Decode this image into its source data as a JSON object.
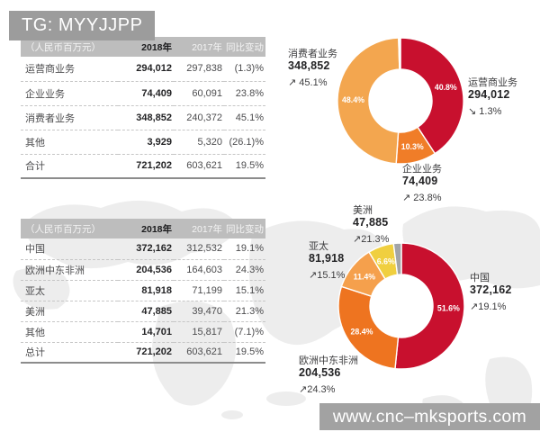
{
  "watermarks": {
    "tag": "TG: MYYJJPP",
    "site": "www.cnc–mksports.com"
  },
  "tables": [
    {
      "headers": {
        "unit": "（人民币百万元）",
        "y2018": "2018年",
        "y2017": "2017年",
        "change": "同比变动"
      },
      "rows": [
        {
          "label": "运营商业务",
          "v2018": "294,012",
          "v2017": "297,838",
          "change": "(1.3)%"
        },
        {
          "label": "企业业务",
          "v2018": "74,409",
          "v2017": "60,091",
          "change": "23.8%"
        },
        {
          "label": "消费者业务",
          "v2018": "348,852",
          "v2017": "240,372",
          "change": "45.1%"
        },
        {
          "label": "其他",
          "v2018": "3,929",
          "v2017": "5,320",
          "change": "(26.1)%"
        },
        {
          "label": "合计",
          "v2018": "721,202",
          "v2017": "603,621",
          "change": "19.5%",
          "total": true
        }
      ]
    },
    {
      "headers": {
        "unit": "（人民币百万元）",
        "y2018": "2018年",
        "y2017": "2017年",
        "change": "同比变动"
      },
      "rows": [
        {
          "label": "中国",
          "v2018": "372,162",
          "v2017": "312,532",
          "change": "19.1%"
        },
        {
          "label": "欧洲中东非洲",
          "v2018": "204,536",
          "v2017": "164,603",
          "change": "24.3%"
        },
        {
          "label": "亚太",
          "v2018": "81,918",
          "v2017": "71,199",
          "change": "15.1%"
        },
        {
          "label": "美洲",
          "v2018": "47,885",
          "v2017": "39,470",
          "change": "21.3%"
        },
        {
          "label": "其他",
          "v2018": "14,701",
          "v2017": "15,817",
          "change": "(7.1)%"
        },
        {
          "label": "总计",
          "v2018": "721,202",
          "v2017": "603,621",
          "change": "19.5%",
          "total": true
        }
      ]
    }
  ],
  "chart_data": [
    {
      "type": "donut",
      "segments": [
        {
          "label": "运营商业务",
          "value": "294,012",
          "pct": 40.8,
          "arrow": "↘",
          "yoy_change": "1.3%",
          "color": "#c8102e"
        },
        {
          "label": "企业业务",
          "value": "74,409",
          "pct": 10.3,
          "arrow": "↗",
          "yoy_change": "23.8%",
          "color": "#f07d28"
        },
        {
          "label": "消费者业务",
          "value": "348,852",
          "pct": 48.4,
          "arrow": "↗",
          "yoy_change": "45.1%",
          "color": "#f3a64f"
        },
        {
          "label": "其他",
          "pct": 0.5,
          "color": "#ffffff",
          "hide_pct": true
        }
      ]
    },
    {
      "type": "donut",
      "segments": [
        {
          "label": "中国",
          "value": "372,162",
          "pct": 51.6,
          "arrow": "↗",
          "yoy_change": "19.1%",
          "color": "#c8102e"
        },
        {
          "label": "欧洲中东非洲",
          "value": "204,536",
          "pct": 28.4,
          "arrow": "↗",
          "yoy_change": "24.3%",
          "color": "#ee7420"
        },
        {
          "label": "亚太",
          "value": "81,918",
          "pct": 11.4,
          "arrow": "↗",
          "yoy_change": "15.1%",
          "color": "#f5a04c"
        },
        {
          "label": "美洲",
          "value": "47,885",
          "pct": 6.6,
          "arrow": "↗",
          "yoy_change": "21.3%",
          "color": "#f0cf3f"
        },
        {
          "label": "其他",
          "pct": 2.0,
          "color": "#a2a4a7",
          "hide_pct": true
        }
      ]
    }
  ]
}
